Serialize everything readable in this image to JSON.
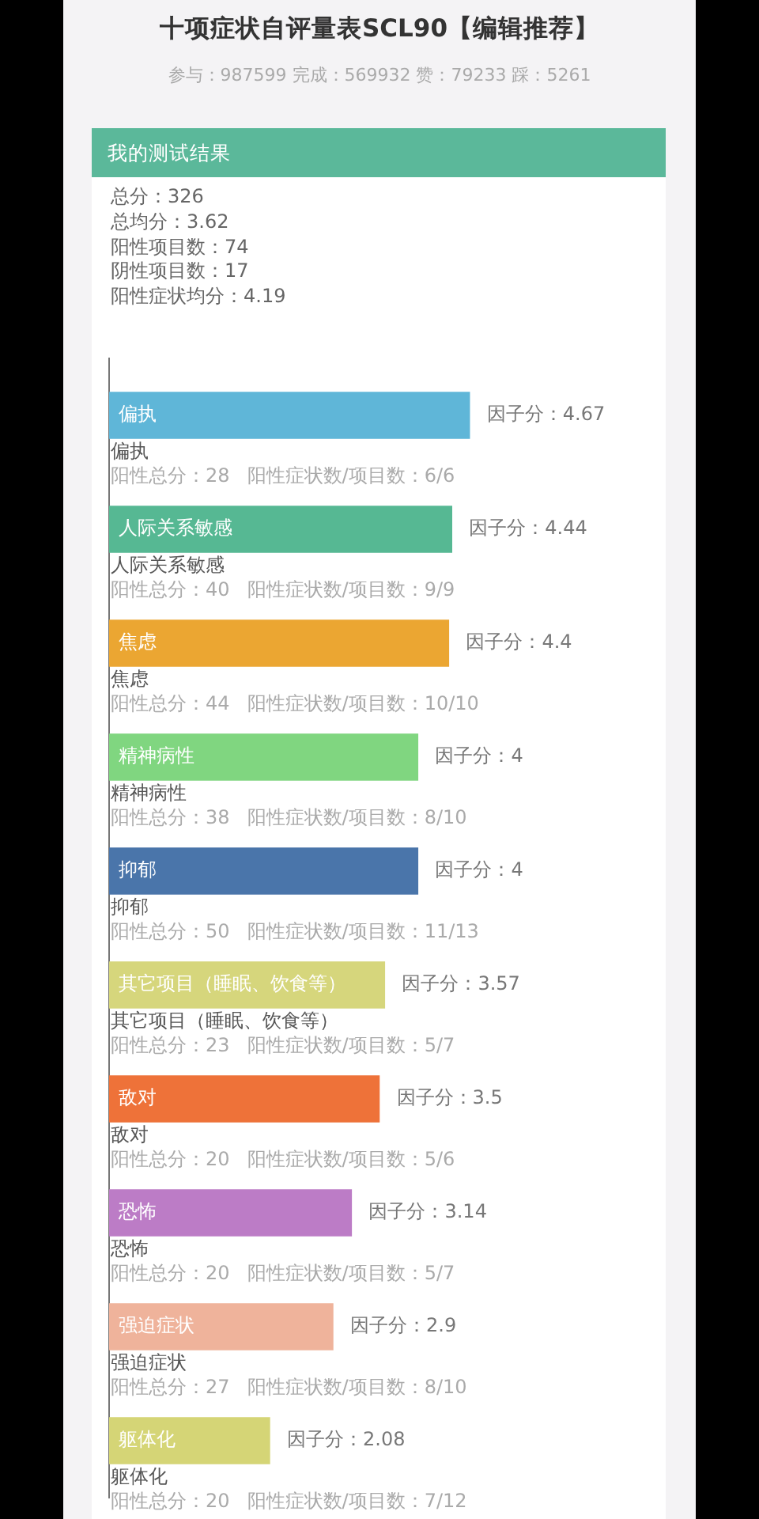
{
  "chart_data": {
    "type": "bar",
    "orientation": "horizontal",
    "title": "十项症状自评量表SCL90【编辑推荐】",
    "subtitle": "参与：987599 完成：569932 赞：79233 踩：5261",
    "categories": [
      "偏执",
      "人际关系敏感",
      "焦虑",
      "精神病性",
      "抑郁",
      "其它项目（睡眠、饮食等）",
      "敌对",
      "恐怖",
      "强迫症状",
      "躯体化"
    ],
    "values": [
      4.67,
      4.44,
      4.4,
      4,
      4,
      3.57,
      3.5,
      3.14,
      2.9,
      2.08
    ],
    "colors": [
      "#5fb6d8",
      "#56b893",
      "#eba632",
      "#80d680",
      "#4a75aa",
      "#d6d67c",
      "#ee7239",
      "#bc7cc6",
      "#efb39b",
      "#d5d576"
    ],
    "value_labels": [
      "因子分：4.67",
      "因子分：4.44",
      "因子分：4.4",
      "因子分：4",
      "因子分：4",
      "因子分：3.57",
      "因子分：3.5",
      "因子分：3.14",
      "因子分：2.9",
      "因子分：2.08"
    ],
    "tick_labels": false,
    "annotations": [
      "我的测试结果",
      "总分：326",
      "总均分：3.62",
      "阳性项目数：74",
      "阴性项目数：17",
      "阳性症状均分：4.19",
      "阳性总分：28",
      "阳性症状数/项目数：6/6",
      "阳性总分：40",
      "阳性症状数/项目数：9/9",
      "阳性总分：44",
      "阳性症状数/项目数：10/10",
      "阳性总分：38",
      "阳性症状数/项目数：8/10",
      "阳性总分：50",
      "阳性症状数/项目数：11/13",
      "阳性总分：23",
      "阳性症状数/项目数：5/7",
      "阳性总分：20",
      "阳性症状数/项目数：5/6",
      "阳性总分：20",
      "阳性症状数/项目数：5/7",
      "阳性总分：27",
      "阳性症状数/项目数：8/10",
      "阳性总分：20",
      "阳性症状数/项目数：7/12"
    ]
  }
}
